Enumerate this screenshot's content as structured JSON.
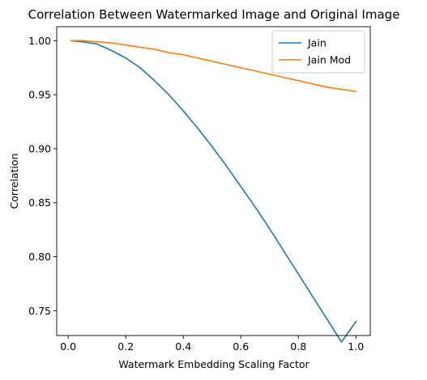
{
  "chart_data": {
    "type": "line",
    "title": "Correlation Between Watermarked Image and Original Image",
    "xlabel": "Watermark Embedding Scaling Factor",
    "ylabel": "Correlation",
    "xlim": [
      -0.04,
      1.05
    ],
    "ylim": [
      0.727,
      1.013
    ],
    "xticks": [
      0.0,
      0.2,
      0.4,
      0.6,
      0.8,
      1.0
    ],
    "xtick_labels": [
      "0.0",
      "0.2",
      "0.4",
      "0.6",
      "0.8",
      "1.0"
    ],
    "yticks": [
      0.75,
      0.8,
      0.85,
      0.9,
      0.95,
      1.0
    ],
    "ytick_labels": [
      "0.75",
      "0.80",
      "0.85",
      "0.90",
      "0.95",
      "1.00"
    ],
    "grid": false,
    "legend_position": "top-right",
    "series": [
      {
        "name": "Jain",
        "color": "#1f77b4",
        "x": [
          0.01,
          0.05,
          0.1,
          0.15,
          0.2,
          0.25,
          0.3,
          0.35,
          0.4,
          0.45,
          0.5,
          0.55,
          0.6,
          0.65,
          0.7,
          0.75,
          0.8,
          0.85,
          0.9,
          0.95,
          1.0
        ],
        "y": [
          1.0,
          0.999,
          0.997,
          0.991,
          0.984,
          0.975,
          0.963,
          0.95,
          0.935,
          0.919,
          0.902,
          0.884,
          0.865,
          0.846,
          0.826,
          0.805,
          0.784,
          0.763,
          0.742,
          0.721,
          0.74
        ]
      },
      {
        "name": "Jain Mod",
        "color": "#ff7f0e",
        "x": [
          0.01,
          0.05,
          0.1,
          0.15,
          0.2,
          0.25,
          0.3,
          0.35,
          0.4,
          0.45,
          0.5,
          0.55,
          0.6,
          0.65,
          0.7,
          0.75,
          0.8,
          0.85,
          0.9,
          0.95,
          1.0
        ],
        "y": [
          1.0,
          1.0,
          0.999,
          0.998,
          0.996,
          0.994,
          0.992,
          0.989,
          0.987,
          0.984,
          0.981,
          0.978,
          0.975,
          0.972,
          0.969,
          0.966,
          0.963,
          0.96,
          0.957,
          0.955,
          0.953
        ]
      }
    ]
  }
}
